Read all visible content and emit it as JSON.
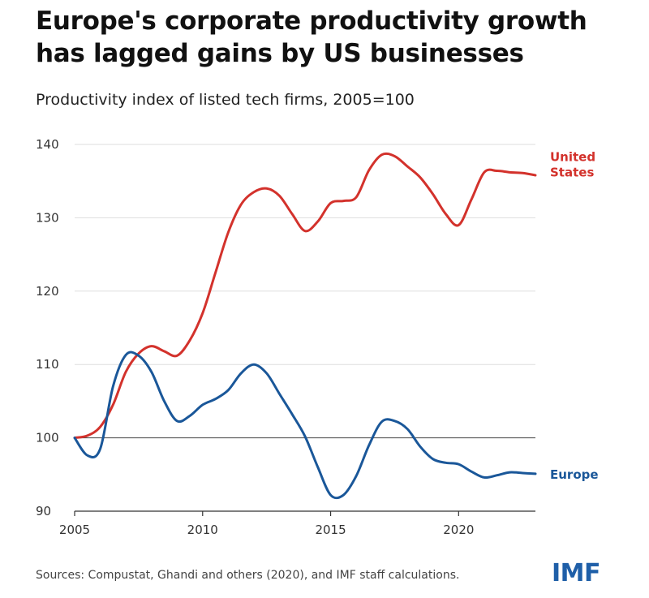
{
  "header": {
    "title": "Europe's corporate productivity growth has lagged gains by US businesses",
    "subtitle": "Productivity index of listed tech firms, 2005=100"
  },
  "footer": {
    "source": "Sources: Compustat, Ghandi and others (2020), and IMF staff calculations.",
    "logo_text": "IMF"
  },
  "colors": {
    "united_states": "#d3322c",
    "europe": "#1a5799",
    "grid": "#dddddd",
    "baseline": "#444444"
  },
  "chart_data": {
    "type": "line",
    "title": "Europe's corporate productivity growth has lagged gains by US businesses",
    "subtitle": "Productivity index of listed tech firms, 2005=100",
    "xlabel": "",
    "ylabel": "",
    "xlim": [
      2005,
      2023
    ],
    "ylim": [
      90,
      140
    ],
    "xticks": [
      2005,
      2010,
      2015,
      2020
    ],
    "yticks": [
      90,
      100,
      110,
      120,
      130,
      140
    ],
    "baseline": 100,
    "grid": true,
    "legend": "direct labels at right end of lines",
    "series": [
      {
        "name": "United States",
        "label_lines": [
          "United",
          "States"
        ],
        "color": "#d3322c",
        "x": [
          2005,
          2005.5,
          2006,
          2006.5,
          2007,
          2007.5,
          2008,
          2008.5,
          2009,
          2009.5,
          2010,
          2010.5,
          2011,
          2011.5,
          2012,
          2012.5,
          2013,
          2013.5,
          2014,
          2014.5,
          2015,
          2015.5,
          2016,
          2016.5,
          2017,
          2017.5,
          2018,
          2018.5,
          2019,
          2019.5,
          2020,
          2020.5,
          2021,
          2021.5,
          2022,
          2022.5,
          2023
        ],
        "values": [
          100,
          100.3,
          101.5,
          104.5,
          109,
          111.5,
          112.5,
          111.8,
          111.2,
          113.3,
          117,
          122.5,
          128,
          131.8,
          133.5,
          134,
          133,
          130.5,
          128.2,
          129.5,
          132,
          132.3,
          132.8,
          136.5,
          138.6,
          138.4,
          137,
          135.5,
          133.2,
          130.5,
          129,
          132.5,
          136.2,
          136.4,
          136.2,
          136.1,
          135.8
        ]
      },
      {
        "name": "Europe",
        "label_lines": [
          "Europe"
        ],
        "color": "#1a5799",
        "x": [
          2005,
          2005.5,
          2006,
          2006.5,
          2007,
          2007.5,
          2008,
          2008.5,
          2009,
          2009.5,
          2010,
          2010.5,
          2011,
          2011.5,
          2012,
          2012.5,
          2013,
          2013.5,
          2014,
          2014.5,
          2015,
          2015.5,
          2016,
          2016.5,
          2017,
          2017.5,
          2018,
          2018.5,
          2019,
          2019.5,
          2020,
          2020.5,
          2021,
          2021.5,
          2022,
          2022.5,
          2023
        ],
        "values": [
          100,
          97.6,
          98.5,
          107,
          111.3,
          111.2,
          109,
          105,
          102.3,
          103,
          104.5,
          105.3,
          106.5,
          108.8,
          110,
          108.8,
          106,
          103.2,
          100.2,
          96,
          92.2,
          92.2,
          94.8,
          99,
          102.2,
          102.3,
          101.2,
          98.8,
          97.1,
          96.6,
          96.4,
          95.4,
          94.6,
          94.9,
          95.3,
          95.2,
          95.1
        ]
      }
    ]
  }
}
